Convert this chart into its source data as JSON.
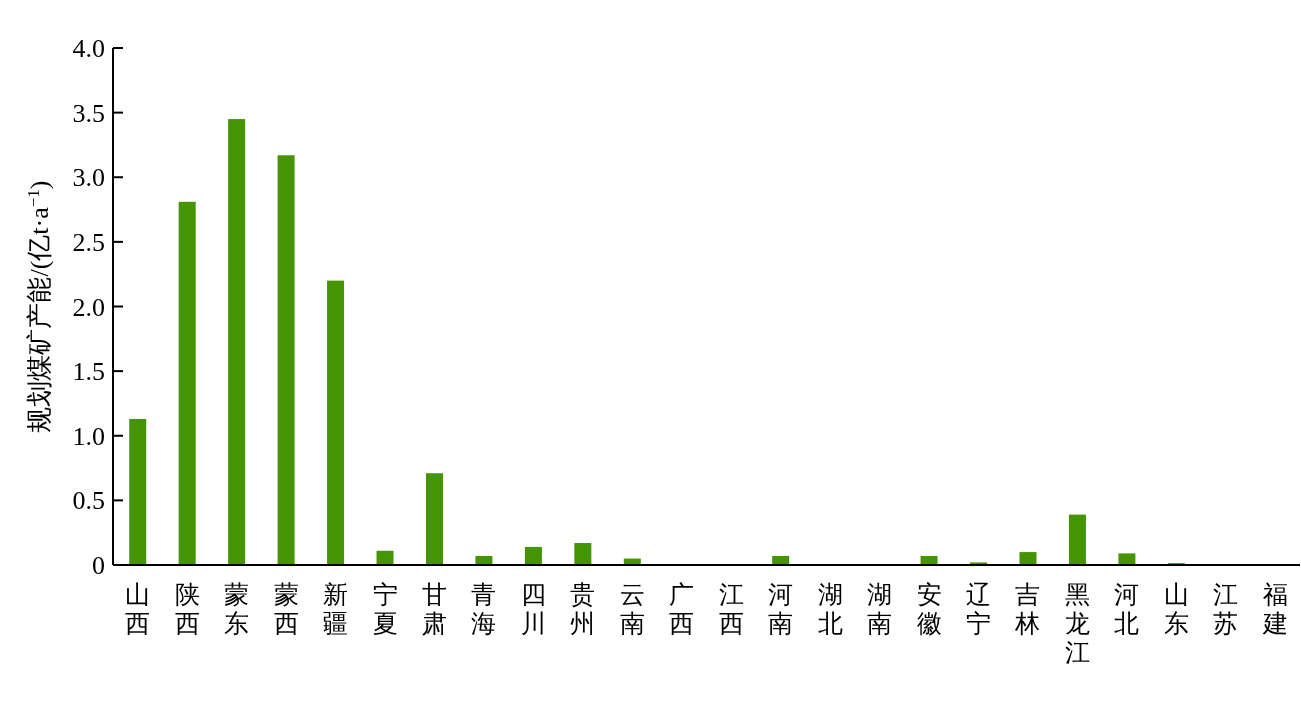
{
  "chart_data": {
    "type": "bar",
    "ylabel": "规划煤矿产能/(亿t·a$^{−1}$)",
    "categories": [
      "山西",
      "陕西",
      "蒙东",
      "蒙西",
      "新疆",
      "宁夏",
      "甘肃",
      "青海",
      "四川",
      "贵州",
      "云南",
      "广西",
      "江西",
      "河南",
      "湖北",
      "湖南",
      "安徽",
      "辽宁",
      "吉林",
      "黑龙江",
      "河北",
      "山东",
      "江苏",
      "福建"
    ],
    "values": [
      1.13,
      2.81,
      3.45,
      3.17,
      2.2,
      0.11,
      0.71,
      0.07,
      0.14,
      0.17,
      0.05,
      0,
      0,
      0.07,
      0,
      0,
      0.07,
      0.02,
      0.1,
      0.39,
      0.09,
      0.015,
      0,
      0
    ],
    "color": "#459403",
    "ylim": [
      0,
      4
    ],
    "yticks": [
      {
        "value": 0,
        "label": "0"
      },
      {
        "value": 0.5,
        "label": "0.5"
      },
      {
        "value": 1,
        "label": "1.0"
      },
      {
        "value": 1.5,
        "label": "1.5"
      },
      {
        "value": 2,
        "label": "2.0"
      },
      {
        "value": 2.5,
        "label": "2.5"
      },
      {
        "value": 3,
        "label": "3.0"
      },
      {
        "value": 3.5,
        "label": "3.5"
      },
      {
        "value": 4,
        "label": "4.0"
      }
    ],
    "grid": false
  }
}
